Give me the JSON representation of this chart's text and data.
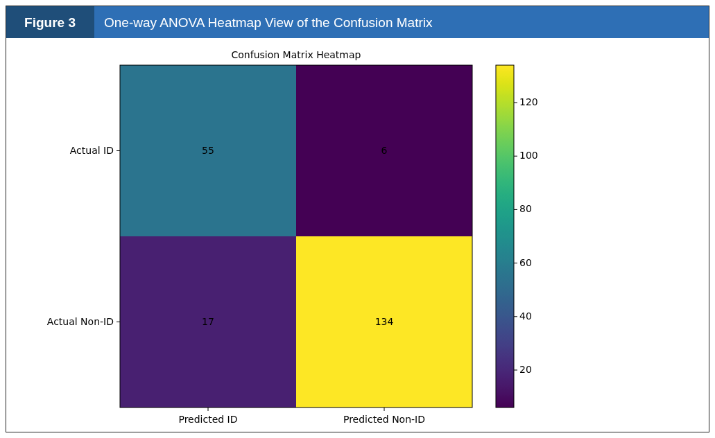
{
  "chart_data": {
    "type": "heatmap",
    "title": "One-way ANOVA Heatmap View of the Confusion Matrix",
    "subtitle": "Confusion Matrix Heatmap",
    "annotations": [
      "Figure 3"
    ],
    "categories": [
      "Predicted ID",
      "Predicted Non-ID"
    ],
    "y_categories": [
      "Actual ID",
      "Actual Non-ID"
    ],
    "cells": [
      [
        55,
        6
      ],
      [
        17,
        134
      ]
    ],
    "data_labels": true,
    "clim": [
      6,
      134
    ],
    "cticks": [
      20,
      40,
      60,
      80,
      100,
      120
    ]
  }
}
